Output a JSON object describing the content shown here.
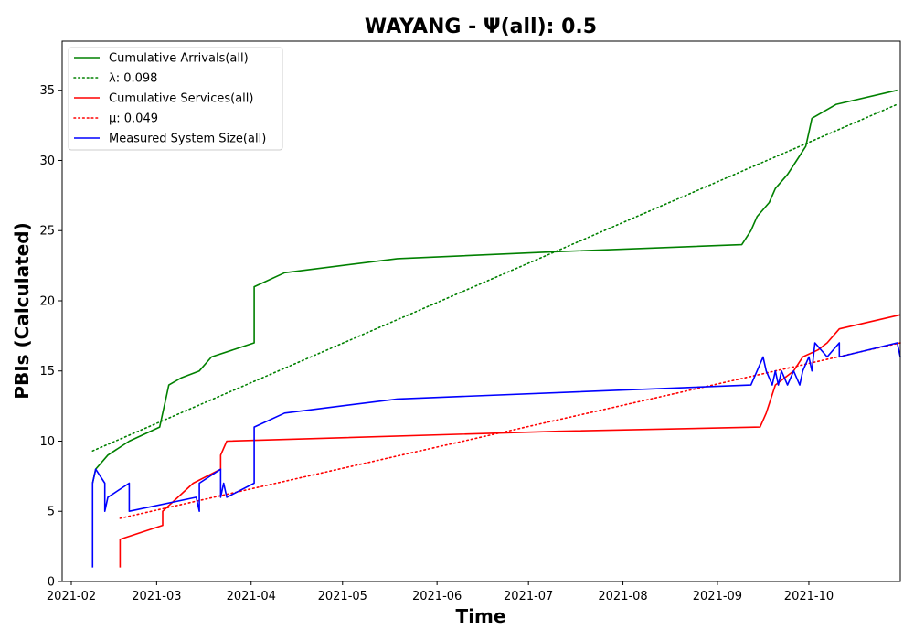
{
  "chart_data": {
    "type": "line",
    "title": "WAYANG -  Ψ(all): 0.5",
    "xlabel": "Time",
    "ylabel": "PBIs (Calculated)",
    "xlim": [
      "2021-01-29",
      "2021-10-31"
    ],
    "ylim": [
      0,
      38.5
    ],
    "x_ticks": [
      "2021-02",
      "2021-03",
      "2021-04",
      "2021-05",
      "2021-06",
      "2021-07",
      "2021-08",
      "2021-09",
      "2021-10"
    ],
    "y_ticks": [
      0,
      5,
      10,
      15,
      20,
      25,
      30,
      35
    ],
    "grid": false,
    "legend_position": "top-left",
    "series": [
      {
        "name": "Cumulative Arrivals(all)",
        "style": "solid",
        "color": "#008000",
        "points": [
          [
            "2021-02-08",
            7
          ],
          [
            "2021-02-09",
            8
          ],
          [
            "2021-02-13",
            9
          ],
          [
            "2021-02-20",
            10
          ],
          [
            "2021-03-02",
            11
          ],
          [
            "2021-03-03",
            12
          ],
          [
            "2021-03-04",
            13
          ],
          [
            "2021-03-05",
            14
          ],
          [
            "2021-03-09",
            14.5
          ],
          [
            "2021-03-15",
            15
          ],
          [
            "2021-03-19",
            16
          ],
          [
            "2021-04-02",
            17
          ],
          [
            "2021-04-02",
            21
          ],
          [
            "2021-04-12",
            22
          ],
          [
            "2021-05-19",
            23
          ],
          [
            "2021-07-10",
            23.5
          ],
          [
            "2021-09-09",
            24
          ],
          [
            "2021-09-12",
            25
          ],
          [
            "2021-09-14",
            26
          ],
          [
            "2021-09-18",
            27
          ],
          [
            "2021-09-20",
            28
          ],
          [
            "2021-09-24",
            29
          ],
          [
            "2021-09-27",
            30
          ],
          [
            "2021-09-30",
            31
          ],
          [
            "2021-10-01",
            32
          ],
          [
            "2021-10-02",
            33
          ],
          [
            "2021-10-10",
            34
          ],
          [
            "2021-10-30",
            35
          ]
        ]
      },
      {
        "name": "λ: 0.098",
        "style": "dotted",
        "color": "#008000",
        "points": [
          [
            "2021-02-08",
            9.3
          ],
          [
            "2021-10-30",
            34
          ]
        ]
      },
      {
        "name": "Cumulative Services(all)",
        "style": "solid",
        "color": "#ff0000",
        "points": [
          [
            "2021-02-17",
            1
          ],
          [
            "2021-02-17",
            3
          ],
          [
            "2021-03-03",
            4
          ],
          [
            "2021-03-03",
            5
          ],
          [
            "2021-03-13",
            7
          ],
          [
            "2021-03-22",
            8
          ],
          [
            "2021-03-22",
            9
          ],
          [
            "2021-03-24",
            10
          ],
          [
            "2021-07-11",
            10.7
          ],
          [
            "2021-09-15",
            11
          ],
          [
            "2021-09-17",
            12
          ],
          [
            "2021-09-20",
            14
          ],
          [
            "2021-09-26",
            15
          ],
          [
            "2021-09-29",
            16
          ],
          [
            "2021-10-04",
            16.5
          ],
          [
            "2021-10-07",
            17
          ],
          [
            "2021-10-11",
            18
          ],
          [
            "2021-10-31",
            19
          ]
        ]
      },
      {
        "name": "μ: 0.049",
        "style": "dotted",
        "color": "#ff0000",
        "points": [
          [
            "2021-02-17",
            4.5
          ],
          [
            "2021-10-31",
            17
          ]
        ]
      },
      {
        "name": "Measured System Size(all)",
        "style": "solid",
        "color": "#0000ff",
        "points": [
          [
            "2021-02-08",
            1
          ],
          [
            "2021-02-08",
            7
          ],
          [
            "2021-02-09",
            8
          ],
          [
            "2021-02-12",
            7
          ],
          [
            "2021-02-12",
            5
          ],
          [
            "2021-02-13",
            6
          ],
          [
            "2021-02-20",
            7
          ],
          [
            "2021-02-20",
            5
          ],
          [
            "2021-03-14",
            6
          ],
          [
            "2021-03-15",
            5
          ],
          [
            "2021-03-15",
            7
          ],
          [
            "2021-03-22",
            8
          ],
          [
            "2021-03-22",
            6
          ],
          [
            "2021-03-23",
            7
          ],
          [
            "2021-03-24",
            6
          ],
          [
            "2021-04-02",
            7
          ],
          [
            "2021-04-02",
            11
          ],
          [
            "2021-04-12",
            12
          ],
          [
            "2021-05-19",
            13
          ],
          [
            "2021-09-12",
            14
          ],
          [
            "2021-09-14",
            15
          ],
          [
            "2021-09-16",
            16
          ],
          [
            "2021-09-17",
            15
          ],
          [
            "2021-09-19",
            14
          ],
          [
            "2021-09-20",
            15
          ],
          [
            "2021-09-21",
            14
          ],
          [
            "2021-09-22",
            15
          ],
          [
            "2021-09-24",
            14
          ],
          [
            "2021-09-26",
            15
          ],
          [
            "2021-09-28",
            14
          ],
          [
            "2021-09-29",
            15
          ],
          [
            "2021-10-01",
            16
          ],
          [
            "2021-10-02",
            15
          ],
          [
            "2021-10-03",
            17
          ],
          [
            "2021-10-07",
            16
          ],
          [
            "2021-10-11",
            17
          ],
          [
            "2021-10-11",
            16
          ],
          [
            "2021-10-30",
            17
          ],
          [
            "2021-10-31",
            16
          ]
        ]
      }
    ]
  }
}
